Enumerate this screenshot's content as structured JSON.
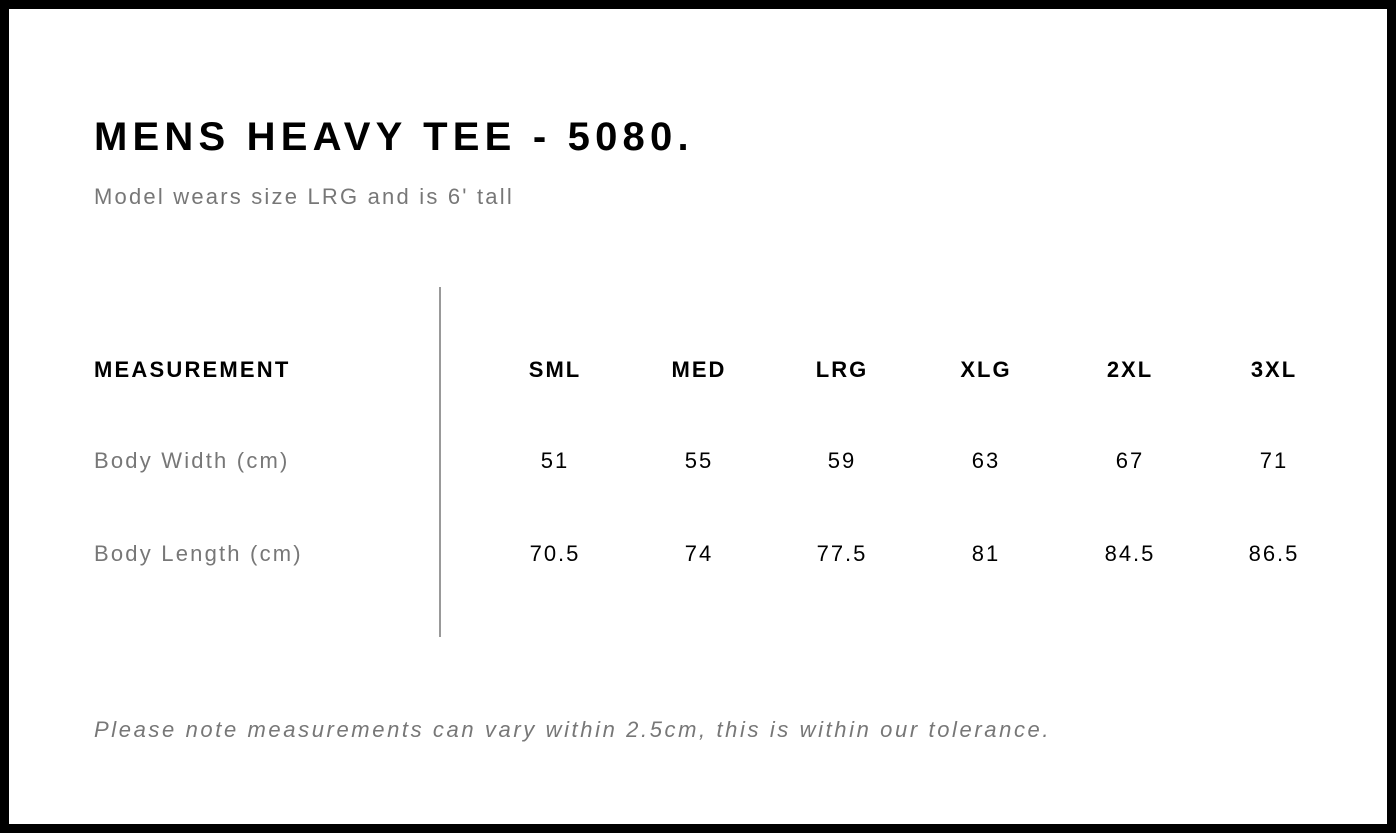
{
  "title": "MENS HEAVY TEE - 5080.",
  "subtitle": "Model wears size LRG and is 6' tall",
  "table": {
    "header_label": "MEASUREMENT",
    "sizes": [
      "SML",
      "MED",
      "LRG",
      "XLG",
      "2XL",
      "3XL"
    ],
    "rows": [
      {
        "label": "Body Width (cm)",
        "values": [
          "51",
          "55",
          "59",
          "63",
          "67",
          "71"
        ]
      },
      {
        "label": "Body Length (cm)",
        "values": [
          "70.5",
          "74",
          "77.5",
          "81",
          "84.5",
          "86.5"
        ]
      }
    ]
  },
  "note": "Please note measurements can vary within 2.5cm, this is within our tolerance."
}
